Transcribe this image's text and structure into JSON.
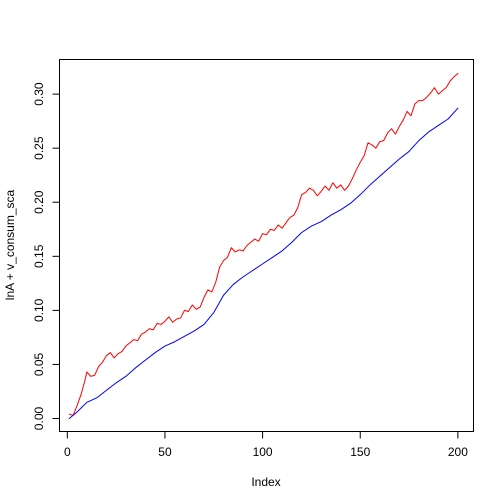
{
  "chart_data": {
    "type": "line",
    "title": "",
    "xlabel": "Index",
    "ylabel": "lnA + v_consum_sca",
    "xlim": [
      -4,
      208
    ],
    "ylim": [
      -0.012,
      0.332
    ],
    "x_ticks": [
      0,
      50,
      100,
      150,
      200
    ],
    "x_tick_labels": [
      "0",
      "50",
      "100",
      "150",
      "200"
    ],
    "y_ticks": [
      0.0,
      0.05,
      0.1,
      0.15,
      0.2,
      0.25,
      0.3
    ],
    "y_tick_labels": [
      "0.00",
      "0.05",
      "0.10",
      "0.15",
      "0.20",
      "0.25",
      "0.30"
    ],
    "grid": false,
    "series": [
      {
        "color": "#ff0000",
        "x": [
          1,
          3,
          5,
          7,
          9,
          10,
          12,
          14,
          16,
          18,
          20,
          22,
          24,
          26,
          28,
          30,
          32,
          34,
          36,
          38,
          40,
          42,
          44,
          46,
          48,
          50,
          52,
          54,
          56,
          58,
          60,
          62,
          64,
          66,
          68,
          70,
          72,
          74,
          76,
          78,
          80,
          82,
          84,
          86,
          88,
          90,
          92,
          94,
          96,
          98,
          100,
          102,
          104,
          106,
          108,
          110,
          112,
          114,
          116,
          118,
          120,
          122,
          124,
          126,
          128,
          130,
          132,
          134,
          136,
          138,
          140,
          142,
          144,
          146,
          148,
          150,
          152,
          154,
          156,
          158,
          160,
          162,
          164,
          166,
          168,
          170,
          172,
          174,
          176,
          178,
          180,
          182,
          184,
          186,
          188,
          190,
          192,
          194,
          196,
          198,
          200
        ],
        "y": [
          0.004,
          0.003,
          0.012,
          0.022,
          0.035,
          0.043,
          0.039,
          0.04,
          0.048,
          0.052,
          0.058,
          0.061,
          0.056,
          0.06,
          0.062,
          0.067,
          0.07,
          0.073,
          0.072,
          0.078,
          0.08,
          0.083,
          0.082,
          0.088,
          0.087,
          0.09,
          0.094,
          0.089,
          0.092,
          0.093,
          0.1,
          0.099,
          0.105,
          0.101,
          0.103,
          0.112,
          0.119,
          0.117,
          0.126,
          0.14,
          0.146,
          0.149,
          0.158,
          0.154,
          0.156,
          0.155,
          0.16,
          0.163,
          0.166,
          0.164,
          0.171,
          0.17,
          0.175,
          0.174,
          0.179,
          0.176,
          0.181,
          0.186,
          0.188,
          0.195,
          0.207,
          0.209,
          0.213,
          0.211,
          0.206,
          0.21,
          0.215,
          0.211,
          0.218,
          0.213,
          0.216,
          0.211,
          0.215,
          0.222,
          0.23,
          0.237,
          0.243,
          0.255,
          0.253,
          0.25,
          0.256,
          0.257,
          0.264,
          0.268,
          0.263,
          0.27,
          0.276,
          0.284,
          0.28,
          0.291,
          0.294,
          0.294,
          0.297,
          0.301,
          0.306,
          0.3,
          0.303,
          0.306,
          0.312,
          0.316,
          0.319
        ]
      },
      {
        "color": "#0000ff",
        "x": [
          1,
          5,
          10,
          15,
          20,
          25,
          30,
          35,
          40,
          45,
          50,
          55,
          60,
          65,
          70,
          75,
          80,
          85,
          90,
          95,
          100,
          105,
          110,
          115,
          120,
          125,
          130,
          135,
          140,
          145,
          150,
          155,
          160,
          165,
          170,
          175,
          180,
          185,
          190,
          195,
          200
        ],
        "y": [
          0.0,
          0.006,
          0.015,
          0.019,
          0.026,
          0.033,
          0.039,
          0.047,
          0.054,
          0.061,
          0.067,
          0.071,
          0.076,
          0.081,
          0.087,
          0.098,
          0.114,
          0.124,
          0.131,
          0.137,
          0.143,
          0.149,
          0.155,
          0.163,
          0.172,
          0.178,
          0.182,
          0.188,
          0.193,
          0.199,
          0.207,
          0.216,
          0.224,
          0.232,
          0.24,
          0.247,
          0.257,
          0.265,
          0.271,
          0.277,
          0.287
        ]
      }
    ]
  }
}
